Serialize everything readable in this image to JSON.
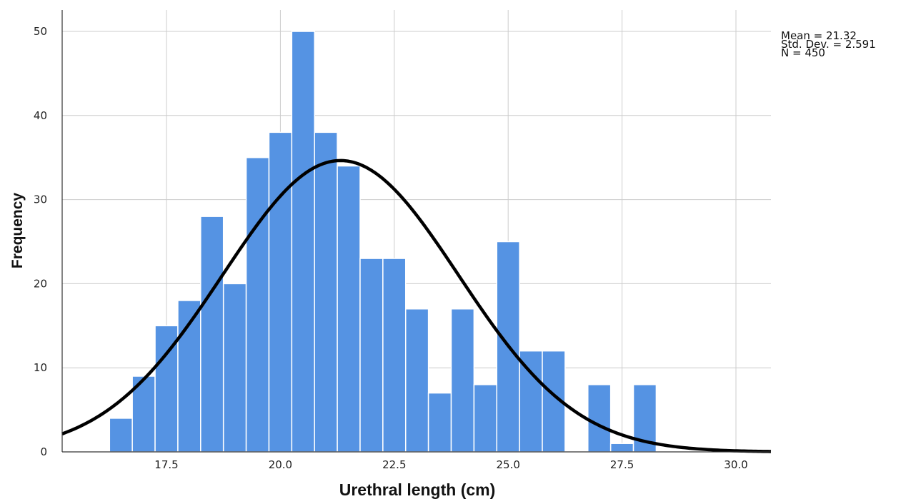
{
  "chart_data": {
    "type": "bar",
    "subtype": "histogram",
    "xlabel": "Urethral length (cm)",
    "ylabel": "Frequency",
    "xlim": [
      15.2,
      30.8
    ],
    "ylim": [
      0,
      52
    ],
    "x_ticks": [
      "17.5",
      "20.0",
      "22.5",
      "25.0",
      "27.5",
      "30.0"
    ],
    "y_ticks": [
      "0",
      "10",
      "20",
      "30",
      "40",
      "50"
    ],
    "grid": true,
    "bin_width": 0.5,
    "bins": [
      {
        "start": 16.25,
        "value": 4
      },
      {
        "start": 16.75,
        "value": 9
      },
      {
        "start": 17.25,
        "value": 15
      },
      {
        "start": 17.75,
        "value": 18
      },
      {
        "start": 18.25,
        "value": 28
      },
      {
        "start": 18.75,
        "value": 20
      },
      {
        "start": 19.25,
        "value": 35
      },
      {
        "start": 19.75,
        "value": 38
      },
      {
        "start": 20.25,
        "value": 50
      },
      {
        "start": 20.75,
        "value": 38
      },
      {
        "start": 21.25,
        "value": 34
      },
      {
        "start": 21.75,
        "value": 23
      },
      {
        "start": 22.25,
        "value": 23
      },
      {
        "start": 22.75,
        "value": 17
      },
      {
        "start": 23.25,
        "value": 7
      },
      {
        "start": 23.75,
        "value": 17
      },
      {
        "start": 24.25,
        "value": 8
      },
      {
        "start": 24.75,
        "value": 25
      },
      {
        "start": 25.25,
        "value": 12
      },
      {
        "start": 25.75,
        "value": 12
      },
      {
        "start": 26.75,
        "value": 8
      },
      {
        "start": 27.25,
        "value": 1
      },
      {
        "start": 27.75,
        "value": 8
      }
    ],
    "normal_curve": {
      "mean": 21.32,
      "std": 2.591,
      "n": 450
    },
    "stats_text": [
      "Mean = 21.32",
      "Std. Dev. = 2.591",
      "N = 450"
    ],
    "legend_position": "top-right"
  },
  "colors": {
    "bar": "#5593e3",
    "bar_edge": "#ffffff",
    "curve": "#000000",
    "grid": "#cccccc",
    "axis": "#333333"
  }
}
